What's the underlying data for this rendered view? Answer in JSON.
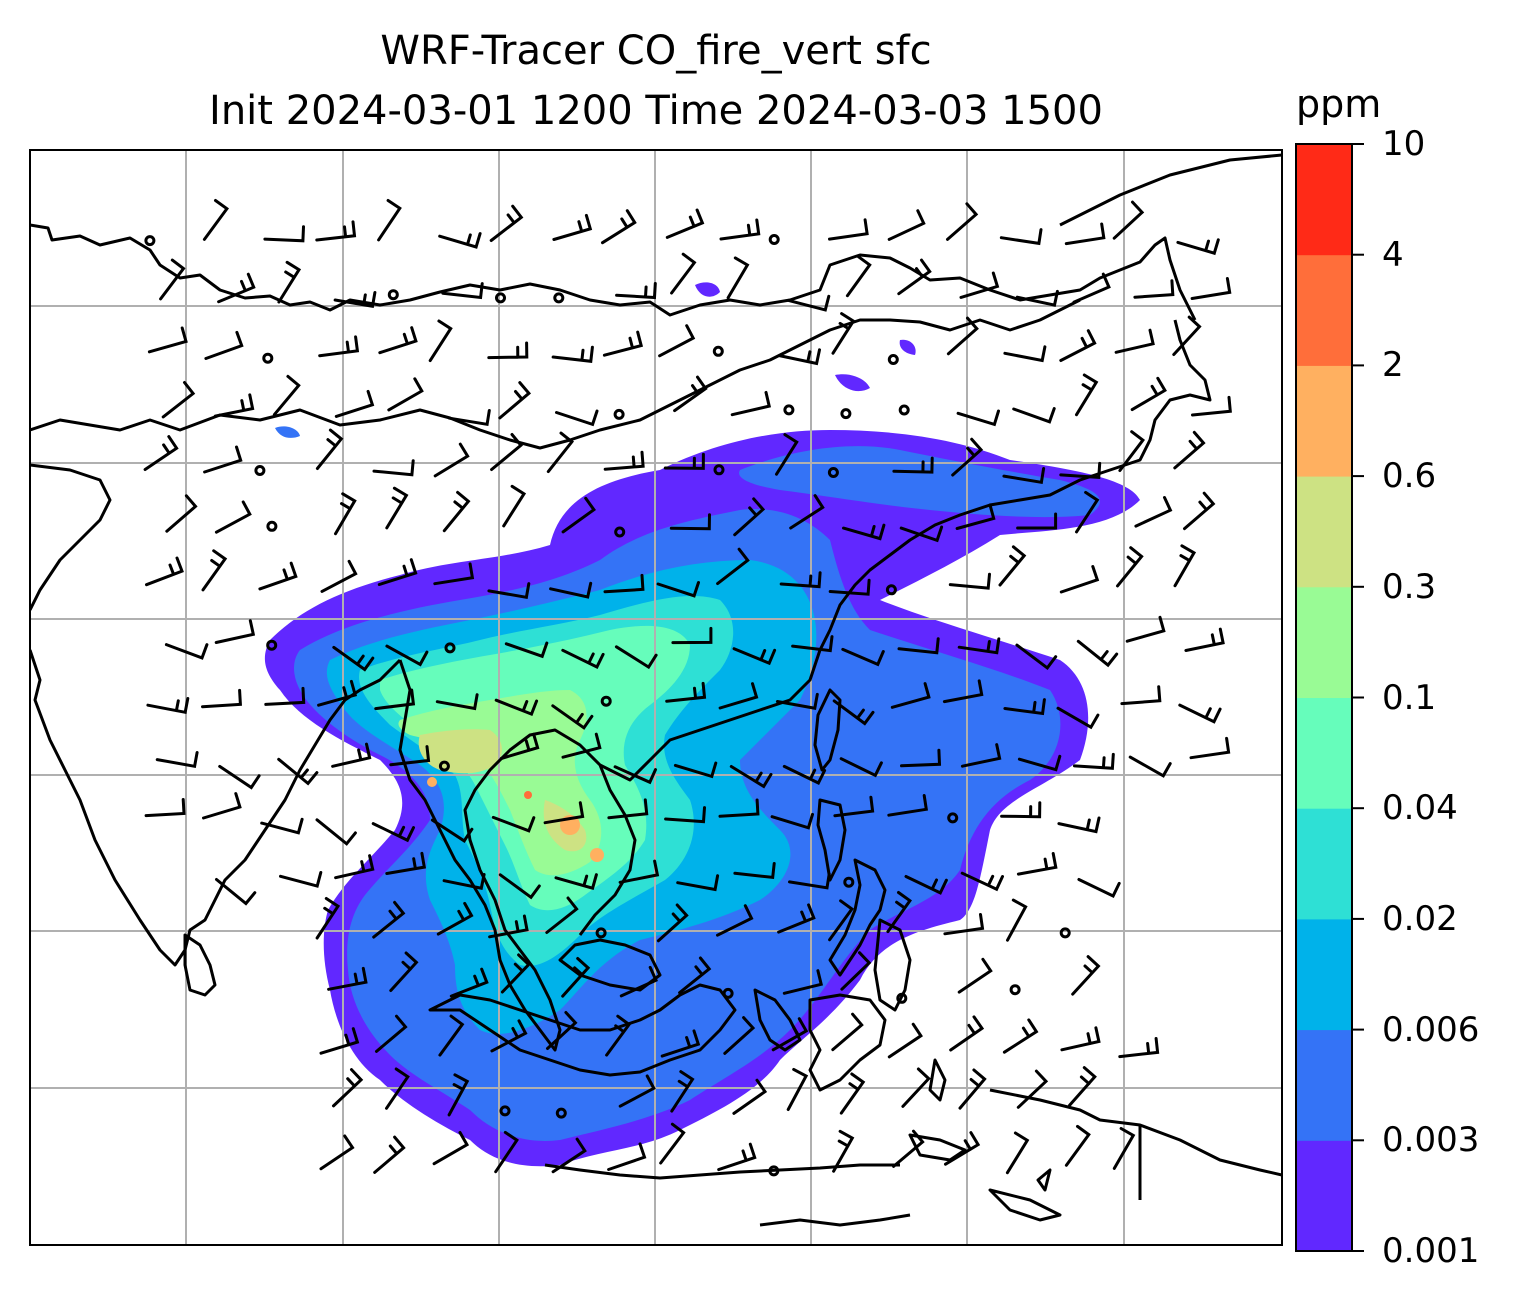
{
  "title": {
    "line1": "WRF-Tracer CO_fire_vert sfc",
    "line2": "Init 2024-03-01 1200 Time 2024-03-03 1500"
  },
  "colorbar": {
    "unit": "ppm",
    "levels": [
      "0.001",
      "0.003",
      "0.006",
      "0.02",
      "0.04",
      "0.1",
      "0.3",
      "0.6",
      "2",
      "4",
      "10"
    ],
    "colors": [
      "#6128ff",
      "#3473f6",
      "#00b2ea",
      "#2ee0d5",
      "#66fdbb",
      "#99fb95",
      "#cde283",
      "#ffb060",
      "#ff6e3a",
      "#ff2a17"
    ]
  },
  "map": {
    "background": "#ffffff",
    "coastline_color": "#000000",
    "grid_color": "#b0b0b0"
  }
}
